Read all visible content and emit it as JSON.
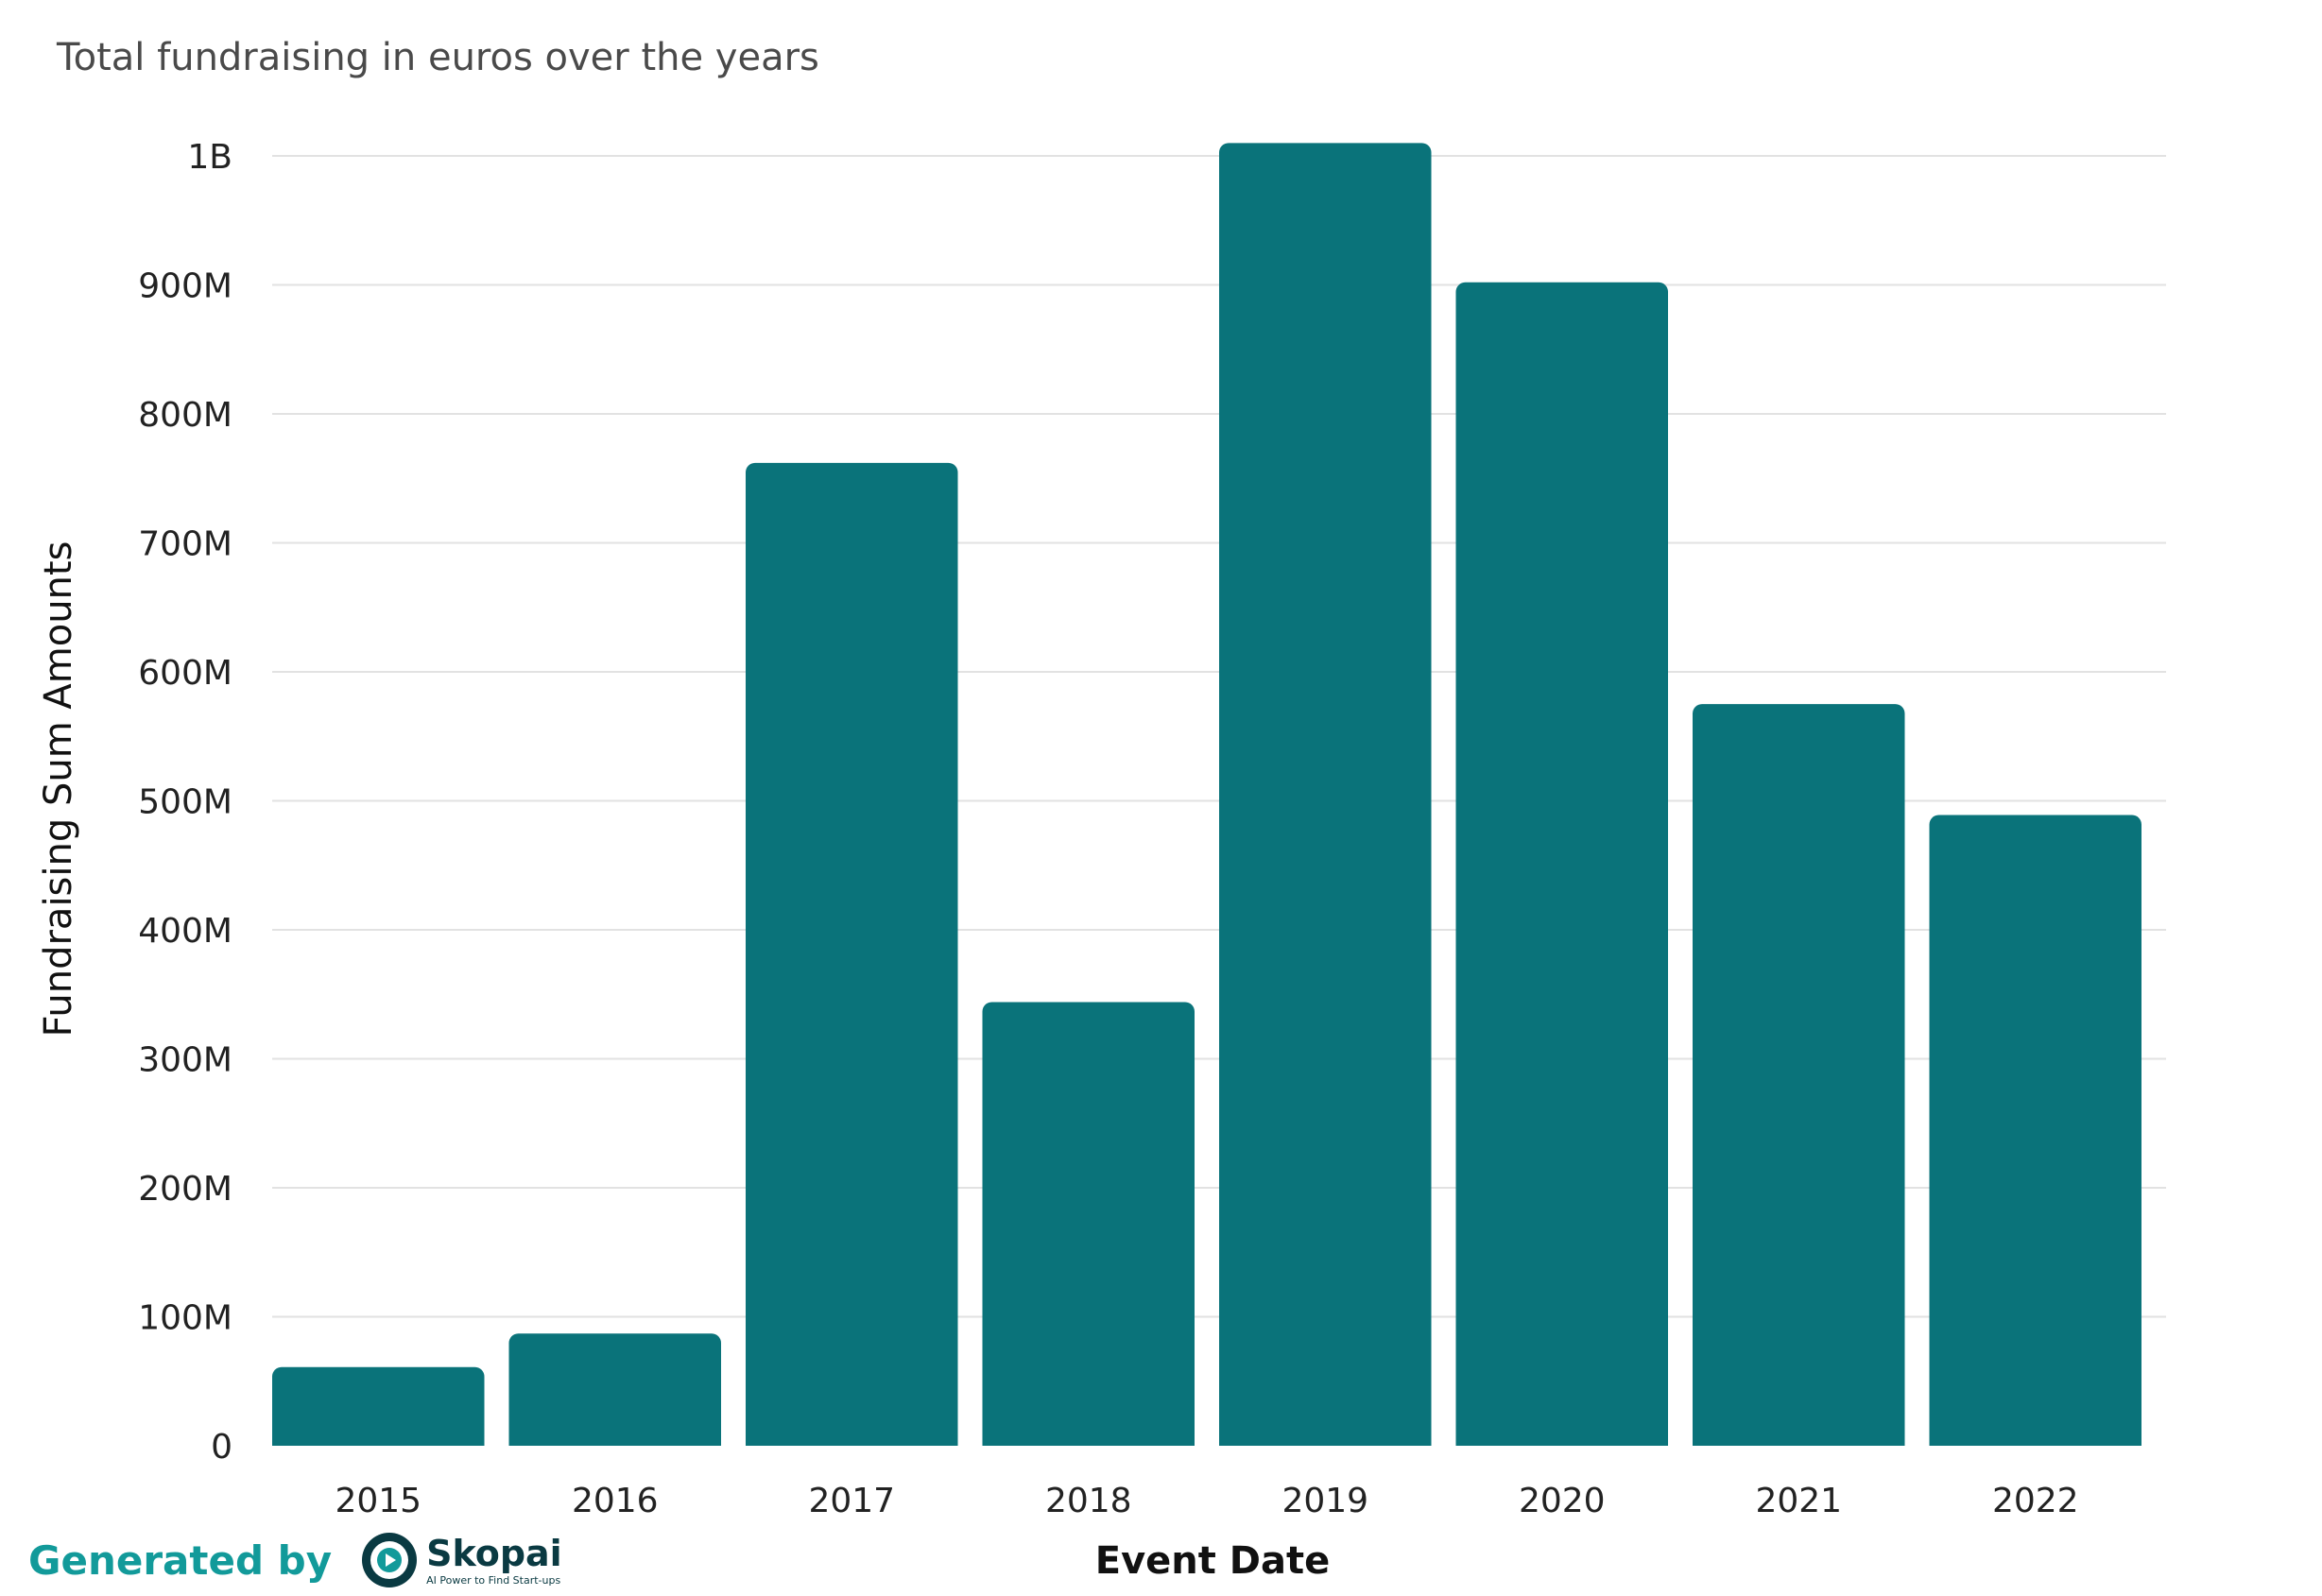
{
  "chart_data": {
    "type": "bar",
    "title": "Total fundraising in euros over the years",
    "xlabel": "Event Date",
    "ylabel": "Fundraising Sum Amounts",
    "categories": [
      "2015",
      "2016",
      "2017",
      "2018",
      "2019",
      "2020",
      "2021",
      "2022"
    ],
    "values": [
      61000000,
      87000000,
      762000000,
      344000000,
      1010000000,
      902000000,
      575000000,
      489000000
    ],
    "ylim": [
      0,
      1000000000
    ],
    "yticks": [
      {
        "value": 0,
        "label": "0"
      },
      {
        "value": 100000000,
        "label": "100M"
      },
      {
        "value": 200000000,
        "label": "200M"
      },
      {
        "value": 300000000,
        "label": "300M"
      },
      {
        "value": 400000000,
        "label": "400M"
      },
      {
        "value": 500000000,
        "label": "500M"
      },
      {
        "value": 600000000,
        "label": "600M"
      },
      {
        "value": 700000000,
        "label": "700M"
      },
      {
        "value": 800000000,
        "label": "800M"
      },
      {
        "value": 900000000,
        "label": "900M"
      },
      {
        "value": 1000000000,
        "label": "1B"
      }
    ],
    "grid": true,
    "legend": "none",
    "bar_color": "#0a737a",
    "grid_color": "#e2e2e2"
  },
  "footer": {
    "generated_by": "Generated by",
    "brand_name": "Skopai",
    "brand_tagline": "AI Power to Find Start-ups",
    "icon": "skopai-logo-icon",
    "accent_color": "#129a9a"
  }
}
